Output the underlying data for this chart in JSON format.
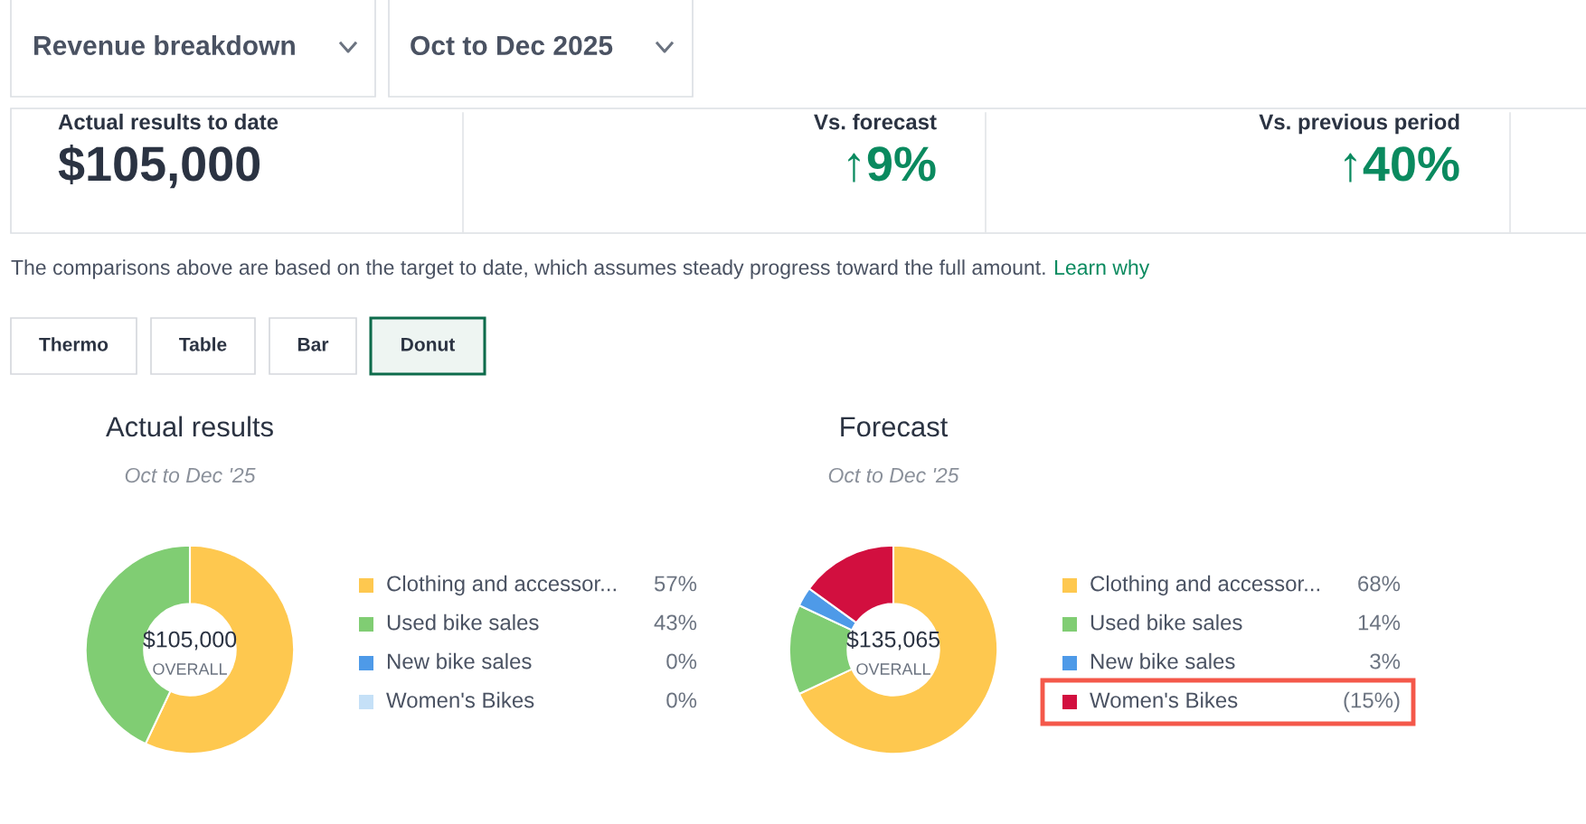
{
  "chart_data": [
    {
      "type": "other",
      "annotations": [
        "Revenue breakdown",
        "Oct to Dec 2025",
        "Actual results to date",
        "$105,000",
        "Vs. forecast",
        "↑9%",
        "Vs. previous period",
        "↑40%",
        "The comparisons above are based on the target to date, which assumes steady progress toward the full amount.",
        "Learn why",
        "Thermo",
        "Table",
        "Bar",
        "Donut"
      ]
    },
    {
      "type": "donut",
      "title": "Actual results",
      "subtitle": "Oct to Dec '25",
      "categories": [
        "Clothing and accessor...",
        "Used bike sales",
        "New bike sales",
        "Women's Bikes"
      ],
      "values": [
        57,
        43,
        0,
        0
      ],
      "colors": [
        "#fec84f",
        "#80cd73",
        "#4e9ae8",
        "#c5e0f7"
      ],
      "value_labels": [
        "57%",
        "43%",
        "0%",
        "0%"
      ],
      "annotations": [
        "$105,000",
        "OVERALL"
      ],
      "legend": "right"
    },
    {
      "type": "donut",
      "title": "Forecast",
      "subtitle": "Oct to Dec '25",
      "categories": [
        "Clothing and accessor...",
        "Used bike sales",
        "New bike sales",
        "Women's Bikes"
      ],
      "values": [
        68,
        14,
        3,
        15
      ],
      "colors": [
        "#fec84f",
        "#80cd73",
        "#4e9ae8",
        "#d20f3f"
      ],
      "value_labels": [
        "68%",
        "14%",
        "3%",
        "(15%)"
      ],
      "annotations": [
        "$135,065",
        "OVERALL"
      ],
      "legend": "right"
    }
  ]
}
